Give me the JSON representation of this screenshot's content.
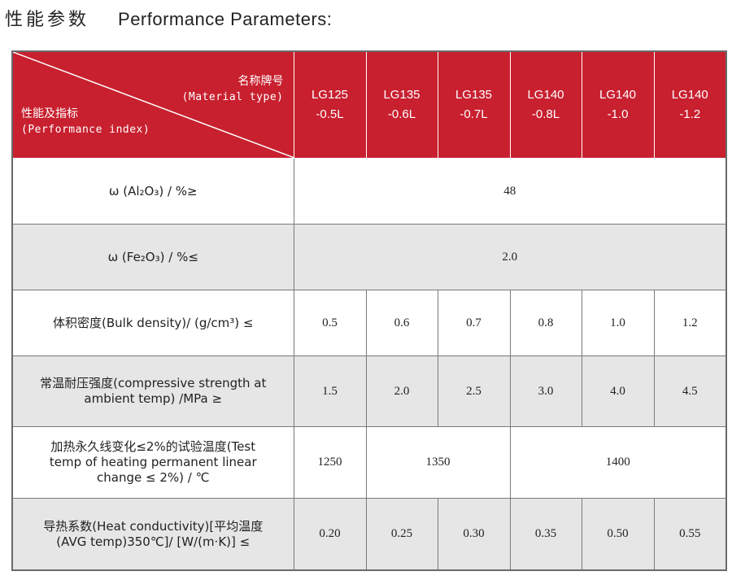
{
  "title": {
    "zh": "性能参数",
    "en": "Performance Parameters:"
  },
  "header": {
    "material_type_zh": "名称牌号",
    "material_type_en": "(Material type)",
    "performance_index_zh": "性能及指标",
    "performance_index_en": "(Performance index)",
    "grades": [
      {
        "line1": "LG125",
        "line2": "-0.5L"
      },
      {
        "line1": "LG135",
        "line2": "-0.6L"
      },
      {
        "line1": "LG135",
        "line2": "-0.7L"
      },
      {
        "line1": "LG140",
        "line2": "-0.8L"
      },
      {
        "line1": "LG140",
        "line2": "-1.0"
      },
      {
        "line1": "LG140",
        "line2": "-1.2"
      }
    ]
  },
  "rows": {
    "al2o3": {
      "label": "ω (Al₂O₃) /  %≥",
      "value": "48"
    },
    "fe2o3": {
      "label": "ω (Fe₂O₃) /  %≤",
      "value": "2.0"
    },
    "bulk": {
      "label": "体积密度(Bulk density)/ (g/cm³) ≤",
      "values": [
        "0.5",
        "0.6",
        "0.7",
        "0.8",
        "1.0",
        "1.2"
      ]
    },
    "strength": {
      "label_1": "常温耐压强度(compressive strength at",
      "label_2": "ambient temp) /MPa  ≥",
      "values": [
        "1.5",
        "2.0",
        "2.5",
        "3.0",
        "4.0",
        "4.5"
      ]
    },
    "heating": {
      "label_1": "加热永久线变化≤2%的试验温度(Test",
      "label_2": "temp of heating permanent linear",
      "label_3": "change ≤ 2%) / ℃",
      "values": [
        "1250",
        "1350",
        "1400"
      ]
    },
    "conductivity": {
      "label_1": "导热系数(Heat conductivity)[平均温度",
      "label_2": "(AVG temp)350℃]/ [W/(m·K)]  ≤",
      "values": [
        "0.20",
        "0.25",
        "0.30",
        "0.35",
        "0.50",
        "0.55"
      ]
    }
  }
}
